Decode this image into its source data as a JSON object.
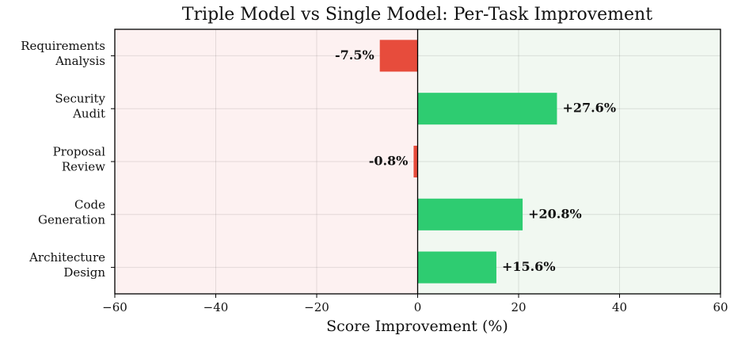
{
  "chart_data": {
    "type": "barh",
    "title": "Triple Model vs Single Model: Per-Task Improvement",
    "xlabel": "Score Improvement (%)",
    "categories": [
      "Requirements\nAnalysis",
      "Security\nAudit",
      "Proposal\nReview",
      "Code\nGeneration",
      "Architecture\nDesign"
    ],
    "values": [
      -7.5,
      27.6,
      -0.8,
      20.8,
      15.6
    ],
    "value_labels": [
      "-7.5%",
      "+27.6%",
      "-0.8%",
      "+20.8%",
      "+15.6%"
    ],
    "colors": [
      "#e74c3c",
      "#2ecc71",
      "#e74c3c",
      "#2ecc71",
      "#2ecc71"
    ],
    "xlim": [
      -60,
      60
    ],
    "xticks": [
      {
        "value": -60,
        "label": "−60"
      },
      {
        "value": -40,
        "label": "−40"
      },
      {
        "value": -20,
        "label": "−20"
      },
      0,
      20,
      40,
      60
    ],
    "grid": true
  }
}
